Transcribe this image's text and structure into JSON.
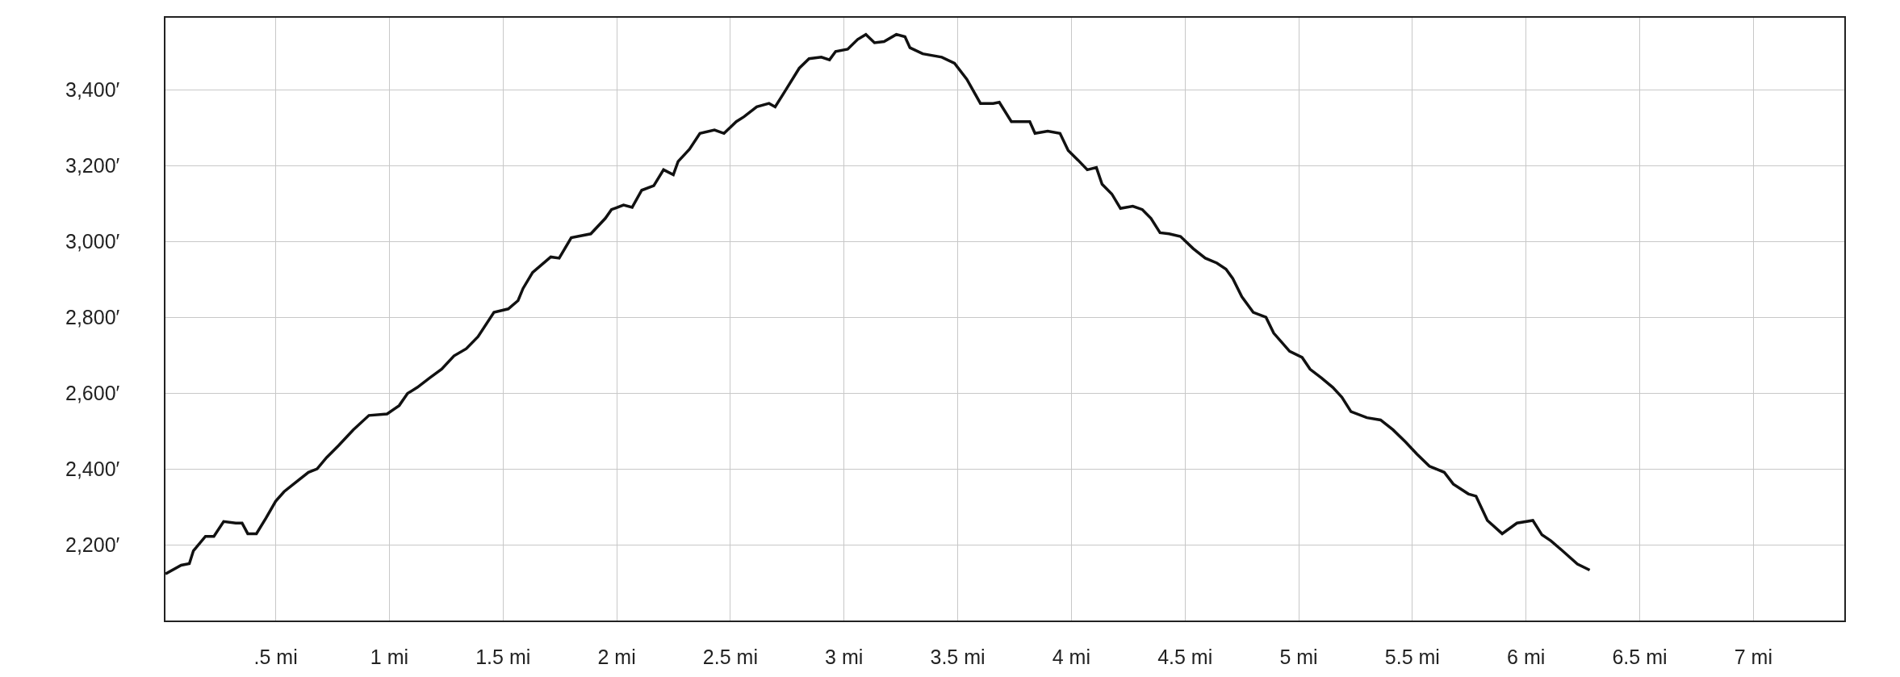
{
  "chart_data": {
    "type": "line",
    "x": [
      0.015,
      0.084,
      0.12,
      0.138,
      0.191,
      0.228,
      0.271,
      0.324,
      0.352,
      0.377,
      0.415,
      0.457,
      0.5,
      0.537,
      0.591,
      0.644,
      0.682,
      0.724,
      0.777,
      0.841,
      0.91,
      0.99,
      1.043,
      1.08,
      1.123,
      1.177,
      1.23,
      1.284,
      1.338,
      1.39,
      1.46,
      1.523,
      1.566,
      1.588,
      1.63,
      1.71,
      1.747,
      1.8,
      1.886,
      1.95,
      1.977,
      2.03,
      2.068,
      2.11,
      2.163,
      2.206,
      2.249,
      2.27,
      2.32,
      2.366,
      2.43,
      2.472,
      2.526,
      2.56,
      2.616,
      2.67,
      2.697,
      2.74,
      2.803,
      2.846,
      2.9,
      2.936,
      2.963,
      3.016,
      3.06,
      3.096,
      3.134,
      3.176,
      3.23,
      3.268,
      3.29,
      3.346,
      3.43,
      3.486,
      3.54,
      3.6,
      3.656,
      3.683,
      3.736,
      3.817,
      3.84,
      3.896,
      3.95,
      3.986,
      4.03,
      4.07,
      4.11,
      4.135,
      4.178,
      4.216,
      4.27,
      4.312,
      4.35,
      4.39,
      4.43,
      4.48,
      4.536,
      4.589,
      4.64,
      4.68,
      4.71,
      4.75,
      4.8,
      4.856,
      4.89,
      4.96,
      5.015,
      5.05,
      5.1,
      5.15,
      5.19,
      5.23,
      5.3,
      5.36,
      5.415,
      5.47,
      5.52,
      5.575,
      5.64,
      5.68,
      5.746,
      5.78,
      5.83,
      5.895,
      5.96,
      6.03,
      6.07,
      6.11,
      6.16,
      6.226,
      6.28
    ],
    "values": [
      2123,
      2146,
      2150,
      2184,
      2222,
      2222,
      2261,
      2257,
      2257,
      2229,
      2229,
      2270,
      2315,
      2340,
      2366,
      2391,
      2400,
      2430,
      2462,
      2503,
      2541,
      2545,
      2567,
      2599,
      2615,
      2640,
      2663,
      2698,
      2717,
      2749,
      2813,
      2822,
      2844,
      2876,
      2918,
      2959,
      2956,
      3010,
      3020,
      3061,
      3084,
      3096,
      3090,
      3135,
      3147,
      3189,
      3176,
      3211,
      3243,
      3285,
      3294,
      3285,
      3316,
      3329,
      3355,
      3364,
      3355,
      3396,
      3457,
      3482,
      3486,
      3479,
      3501,
      3507,
      3533,
      3546,
      3524,
      3527,
      3546,
      3540,
      3511,
      3495,
      3486,
      3470,
      3428,
      3364,
      3364,
      3367,
      3316,
      3316,
      3285,
      3291,
      3285,
      3240,
      3214,
      3189,
      3195,
      3151,
      3125,
      3087,
      3093,
      3084,
      3061,
      3023,
      3020,
      3013,
      2981,
      2956,
      2943,
      2927,
      2902,
      2854,
      2813,
      2800,
      2758,
      2710,
      2694,
      2663,
      2640,
      2615,
      2589,
      2551,
      2535,
      2529,
      2503,
      2471,
      2439,
      2407,
      2391,
      2360,
      2334,
      2328,
      2264,
      2229,
      2257,
      2264,
      2226,
      2210,
      2184,
      2149,
      2133
    ],
    "color": "#111111",
    "xlim": [
      0.015,
      7.4
    ],
    "ylim": [
      2000,
      3590
    ],
    "xticks": [
      {
        "value": 0.5,
        "label": ".5 mi"
      },
      {
        "value": 1,
        "label": "1 mi"
      },
      {
        "value": 1.5,
        "label": "1.5 mi"
      },
      {
        "value": 2,
        "label": "2 mi"
      },
      {
        "value": 2.5,
        "label": "2.5 mi"
      },
      {
        "value": 3,
        "label": "3 mi"
      },
      {
        "value": 3.5,
        "label": "3.5 mi"
      },
      {
        "value": 4,
        "label": "4 mi"
      },
      {
        "value": 4.5,
        "label": "4.5 mi"
      },
      {
        "value": 5,
        "label": "5 mi"
      },
      {
        "value": 5.5,
        "label": "5.5 mi"
      },
      {
        "value": 6,
        "label": "6 mi"
      },
      {
        "value": 6.5,
        "label": "6.5 mi"
      },
      {
        "value": 7,
        "label": "7 mi"
      }
    ],
    "yticks": [
      {
        "value": 2200,
        "label": "2,200′"
      },
      {
        "value": 2400,
        "label": "2,400′"
      },
      {
        "value": 2600,
        "label": "2,600′"
      },
      {
        "value": 2800,
        "label": "2,800′"
      },
      {
        "value": 3000,
        "label": "3,000′"
      },
      {
        "value": 3200,
        "label": "3,200′"
      },
      {
        "value": 3400,
        "label": "3,400′"
      }
    ],
    "grid": true,
    "marker": "none",
    "line_style": "solid"
  }
}
